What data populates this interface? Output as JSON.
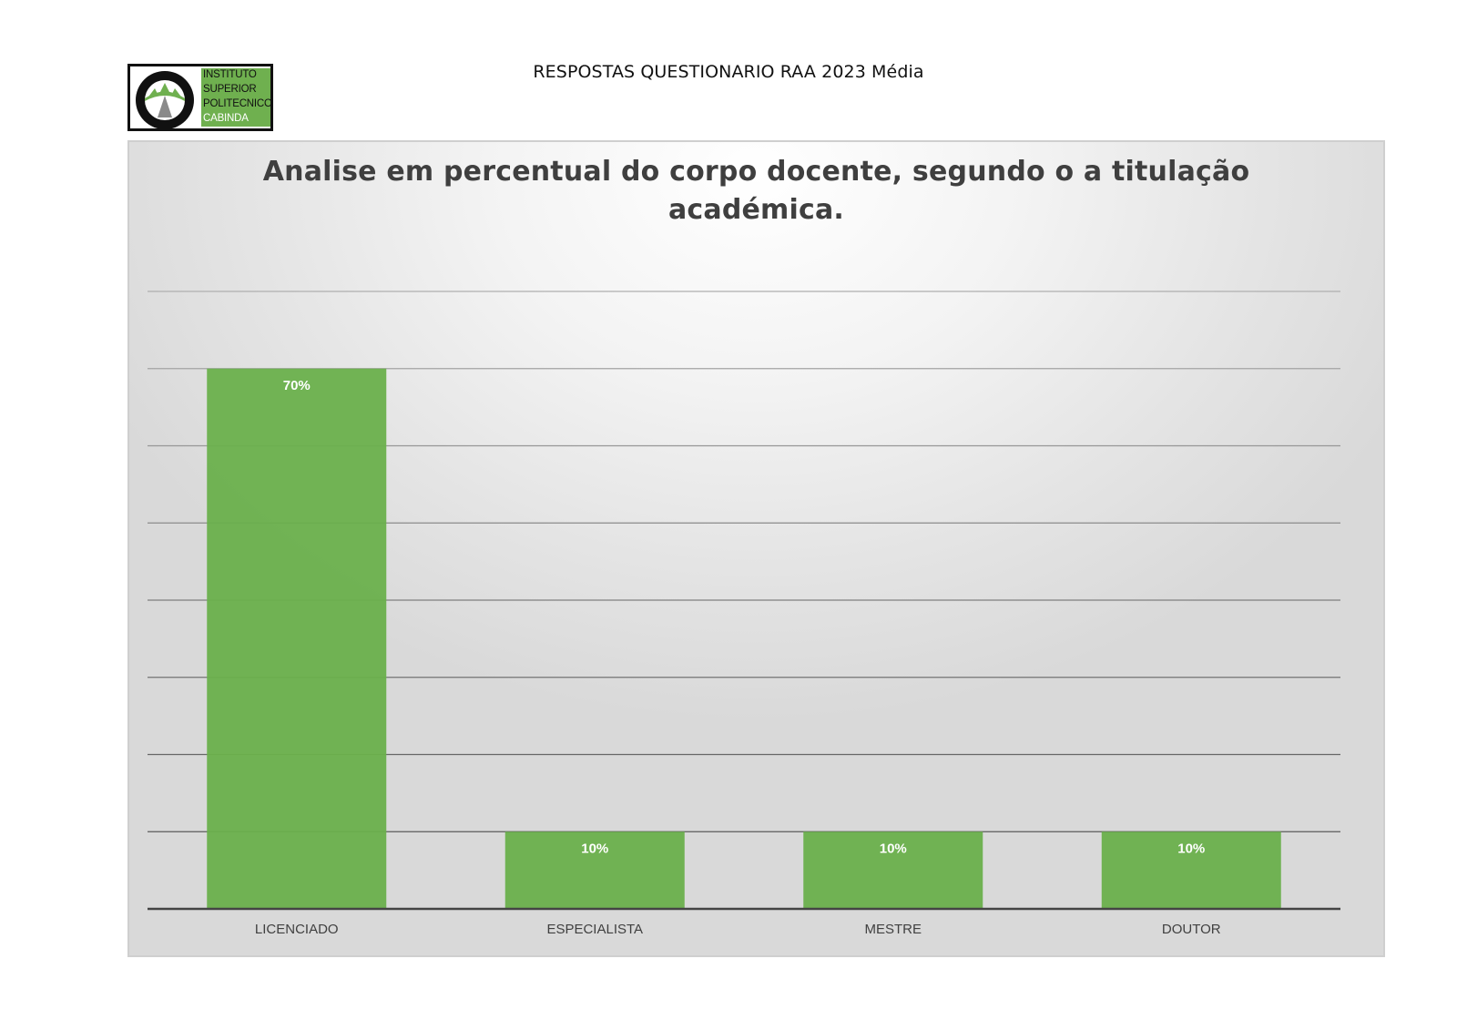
{
  "header": {
    "text": "RESPOSTAS QUESTIONARIO RAA 2023 Média"
  },
  "logo": {
    "lines": [
      "INSTITUTO",
      "SUPERIOR",
      "POLITECNICO",
      "CABINDA"
    ]
  },
  "colors": {
    "bar": "#6ab04c",
    "gridline": "#b8b8b8",
    "axis": "#444444",
    "title": "#3f3f3f",
    "logo_green": "#6fb04f"
  },
  "chart_data": {
    "type": "bar",
    "title_lines": [
      "Analise em percentual do corpo docente, segundo o a titulação",
      "académica."
    ],
    "categories": [
      "LICENCIADO",
      "ESPECIALISTA",
      "MESTRE",
      "DOUTOR"
    ],
    "values": [
      70,
      10,
      10,
      10
    ],
    "data_labels": [
      "70%",
      "10%",
      "10%",
      "10%"
    ],
    "ylim": [
      0,
      80
    ],
    "grid": true,
    "y_axis_visible": false,
    "legend": "none"
  }
}
